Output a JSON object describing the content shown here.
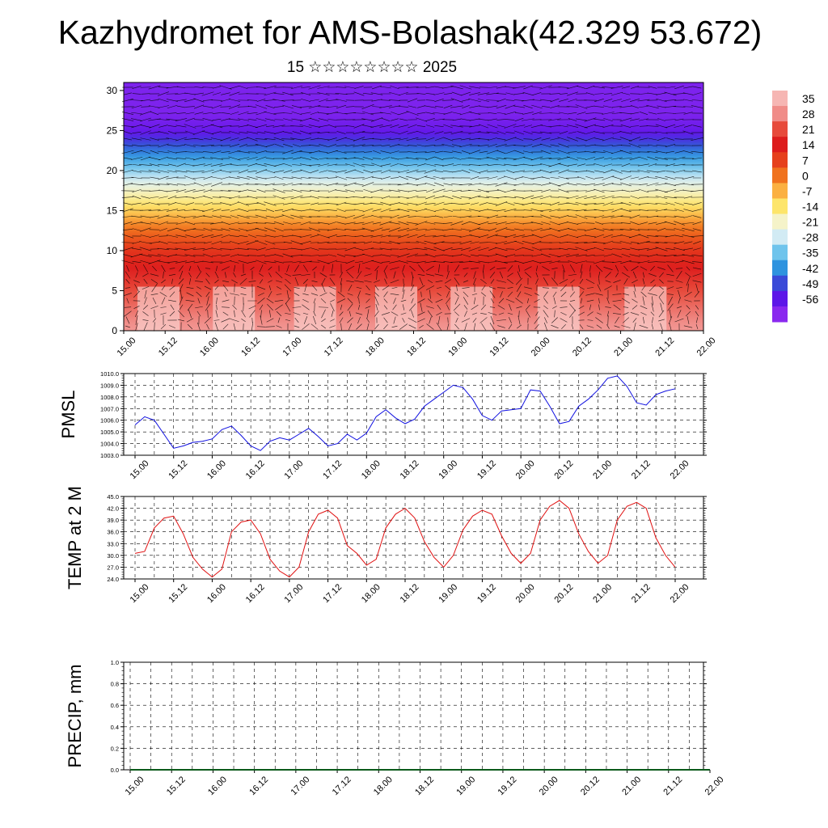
{
  "title": "Kazhydromet for AMS-Bolashak(42.329 53.672)",
  "subtitle": "15 ☆☆☆☆☆☆☆☆ 2025",
  "time_labels": [
    "15.00",
    "15.12",
    "16.00",
    "16.12",
    "17.00",
    "17.12",
    "18.00",
    "18.12",
    "19.00",
    "19.12",
    "20.00",
    "20.12",
    "21.00",
    "21.12",
    "22.00"
  ],
  "chart_data": [
    {
      "type": "heatmap",
      "title": "",
      "xlabel": "",
      "ylabel": "",
      "x": [
        "15.00",
        "15.12",
        "16.00",
        "16.12",
        "17.00",
        "17.12",
        "18.00",
        "18.12",
        "19.00",
        "19.12",
        "20.00",
        "20.12",
        "21.00",
        "21.12",
        "22.00"
      ],
      "y_ticks": [
        0,
        5,
        10,
        15,
        20,
        25,
        30
      ],
      "ylim": [
        0,
        31
      ],
      "colorbar_labels": [
        "35",
        "28",
        "21",
        "14",
        "7",
        "0",
        "-7",
        "-14",
        "-21",
        "-28",
        "-35",
        "-42",
        "-49",
        "-56"
      ],
      "colorbar_colors": [
        "#f6b6b3",
        "#f08c88",
        "#e74a3b",
        "#dd1c1c",
        "#e6401c",
        "#f0721e",
        "#fbb041",
        "#fde56b",
        "#f5f3c9",
        "#d2ebf4",
        "#6fc4ec",
        "#2e93df",
        "#3a4ad8",
        "#5d16e8",
        "#8a28ef"
      ],
      "temperature_profile": [
        {
          "height": 0,
          "value": 33
        },
        {
          "height": 5,
          "value": 24
        },
        {
          "height": 10,
          "value": 12
        },
        {
          "height": 13,
          "value": 2
        },
        {
          "height": 15,
          "value": -8
        },
        {
          "height": 17,
          "value": -16
        },
        {
          "height": 20,
          "value": -30
        },
        {
          "height": 23,
          "value": -44
        },
        {
          "height": 25,
          "value": -55
        },
        {
          "height": 27,
          "value": -58
        },
        {
          "height": 31,
          "value": -58
        }
      ],
      "wind_vectors": true
    },
    {
      "type": "line",
      "ylabel": "PMSL",
      "ylim": [
        1003.0,
        1010.0
      ],
      "y_ticks": [
        "1003.0",
        "1004.0",
        "1005.0",
        "1006.0",
        "1007.0",
        "1008.0",
        "1009.0",
        "1010.0"
      ],
      "x_ticks": [
        "15.00",
        "15.12",
        "16.00",
        "16.12",
        "17.00",
        "17.12",
        "18.00",
        "18.12",
        "19.00",
        "19.12",
        "20.00",
        "20.12",
        "21.00",
        "21.12",
        "22.00"
      ],
      "series": [
        {
          "color": "#1010e0",
          "values": [
            1005.6,
            1006.3,
            1006.0,
            1004.8,
            1003.6,
            1003.8,
            1004.1,
            1004.2,
            1004.4,
            1005.2,
            1005.5,
            1004.7,
            1003.8,
            1003.4,
            1004.2,
            1004.5,
            1004.3,
            1004.8,
            1005.3,
            1004.6,
            1003.8,
            1004.0,
            1004.8,
            1004.3,
            1004.9,
            1006.3,
            1006.9,
            1006.2,
            1005.7,
            1006.1,
            1007.2,
            1007.8,
            1008.4,
            1009.0,
            1008.8,
            1007.8,
            1006.4,
            1006.0,
            1006.8,
            1006.9,
            1007.0,
            1008.6,
            1008.5,
            1007.2,
            1005.7,
            1005.9,
            1007.2,
            1007.8,
            1008.6,
            1009.6,
            1009.8,
            1008.9,
            1007.5,
            1007.3,
            1008.2,
            1008.5,
            1008.7
          ]
        }
      ]
    },
    {
      "type": "line",
      "ylabel": "TEMP at 2 M",
      "ylim": [
        24.0,
        45.0
      ],
      "y_ticks": [
        "24.0",
        "27.0",
        "30.0",
        "33.0",
        "36.0",
        "39.0",
        "42.0",
        "45.0"
      ],
      "x_ticks": [
        "15.00",
        "15.12",
        "16.00",
        "16.12",
        "17.00",
        "17.12",
        "18.00",
        "18.12",
        "19.00",
        "19.12",
        "20.00",
        "20.12",
        "21.00",
        "21.12",
        "22.00"
      ],
      "series": [
        {
          "color": "#e01010",
          "values": [
            30.5,
            31.0,
            37.0,
            39.5,
            40.0,
            35.5,
            29.5,
            26.5,
            24.5,
            26.5,
            36.0,
            38.5,
            39.0,
            35.5,
            29.0,
            26.0,
            24.5,
            27.0,
            36.0,
            40.5,
            41.5,
            39.5,
            32.5,
            30.5,
            27.5,
            29.0,
            37.0,
            40.5,
            42.0,
            39.5,
            33.5,
            29.5,
            27.0,
            30.0,
            36.5,
            40.0,
            41.5,
            40.5,
            35.0,
            30.5,
            28.0,
            30.5,
            39.0,
            42.5,
            44.0,
            42.0,
            35.5,
            31.0,
            28.0,
            30.0,
            39.0,
            42.5,
            43.5,
            42.0,
            34.5,
            30.0,
            27.0
          ]
        }
      ]
    },
    {
      "type": "line",
      "ylabel": "PRECIP, mm",
      "ylim": [
        0.0,
        1.0
      ],
      "y_ticks": [
        "0.0",
        "0.2",
        "0.4",
        "0.6",
        "0.8",
        "1.0"
      ],
      "x_ticks": [
        "15.00",
        "15.12",
        "16.00",
        "16.12",
        "17.00",
        "17.12",
        "18.00",
        "18.12",
        "19.00",
        "19.12",
        "20.00",
        "20.12",
        "21.00",
        "21.12",
        "22.00"
      ],
      "series": [
        {
          "color": "#0b5a1a",
          "values": [
            0,
            0,
            0,
            0,
            0,
            0,
            0,
            0,
            0,
            0,
            0,
            0,
            0,
            0,
            0,
            0,
            0,
            0,
            0,
            0,
            0,
            0,
            0,
            0,
            0,
            0,
            0,
            0,
            0,
            0,
            0,
            0,
            0,
            0,
            0,
            0,
            0,
            0,
            0,
            0,
            0,
            0,
            0,
            0,
            0,
            0,
            0,
            0,
            0,
            0,
            0,
            0,
            0,
            0,
            0,
            0,
            0,
            0,
            0
          ]
        }
      ]
    }
  ]
}
